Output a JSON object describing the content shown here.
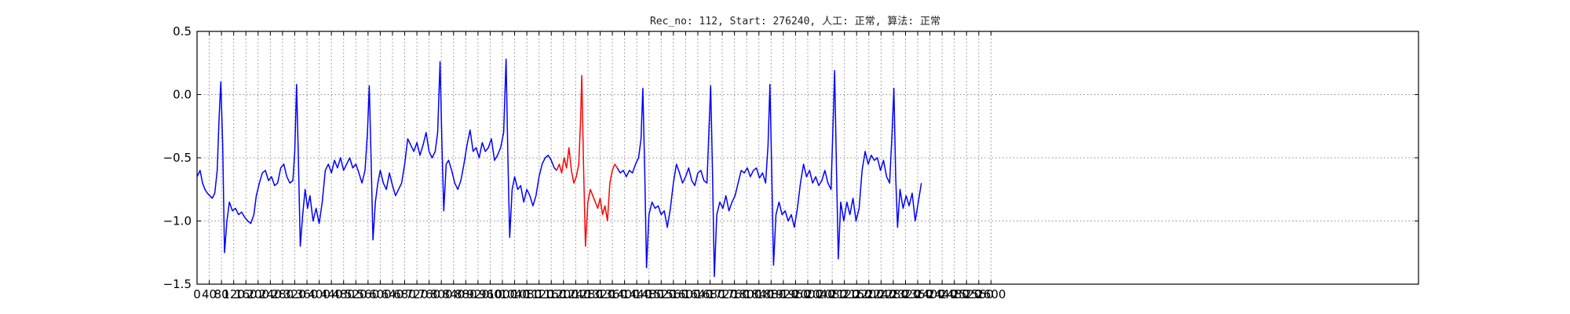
{
  "chart_data": {
    "type": "line",
    "title": "Rec_no: 112, Start: 276240, 人工: 正常, 算法: 正常",
    "xlabel": "",
    "ylabel": "",
    "xlim": [
      0,
      4000
    ],
    "ylim": [
      -1.5,
      0.5
    ],
    "y_ticks": [
      "0.5",
      "0.0",
      "−0.5",
      "−1.0",
      "−1.5"
    ],
    "y_tick_values": [
      0.5,
      0.0,
      -0.5,
      -1.0,
      -1.5
    ],
    "x_ticks": [
      "0",
      "40",
      "80",
      "120",
      "160",
      "200",
      "240",
      "280",
      "320",
      "360",
      "400",
      "440",
      "480",
      "520",
      "560",
      "600",
      "640",
      "680",
      "720",
      "760",
      "800",
      "840",
      "880",
      "920",
      "960",
      "1000",
      "1040",
      "1080",
      "1120",
      "1160",
      "1200",
      "1240",
      "1280",
      "1320",
      "1360",
      "1400",
      "1440",
      "1480",
      "1520",
      "1560",
      "1600",
      "1640",
      "1680",
      "1720",
      "1760",
      "1800",
      "1840",
      "1880",
      "1920",
      "1960",
      "2000",
      "2040",
      "2080",
      "2120",
      "2160",
      "2200",
      "2240",
      "2280",
      "2320",
      "2360",
      "2400",
      "2440",
      "2480",
      "2520",
      "2560",
      "2600"
    ],
    "x_tick_values": [
      0,
      40,
      80,
      120,
      160,
      200,
      240,
      280,
      320,
      360,
      400,
      440,
      480,
      520,
      560,
      600,
      640,
      680,
      720,
      760,
      800,
      840,
      880,
      920,
      960,
      1000,
      1040,
      1080,
      1120,
      1160,
      1200,
      1240,
      1280,
      1320,
      1360,
      1400,
      1440,
      1480,
      1520,
      1560,
      1600,
      1640,
      1680,
      1720,
      1760,
      1800,
      1840,
      1880,
      1920,
      1960,
      2000,
      2040,
      2080,
      2120,
      2160,
      2200,
      2240,
      2280,
      2320,
      2360,
      2400,
      2440,
      2480,
      2520,
      2560,
      2600
    ],
    "grid": true,
    "series": [
      {
        "color": "#0000ff",
        "points": [
          [
            0,
            -0.65
          ],
          [
            10,
            -0.6
          ],
          [
            18,
            -0.7
          ],
          [
            26,
            -0.75
          ],
          [
            34,
            -0.78
          ],
          [
            42,
            -0.8
          ],
          [
            50,
            -0.82
          ],
          [
            58,
            -0.78
          ],
          [
            66,
            -0.6
          ],
          [
            72,
            -0.2
          ],
          [
            78,
            0.1
          ],
          [
            84,
            -0.4
          ],
          [
            90,
            -1.25
          ],
          [
            98,
            -1.0
          ],
          [
            106,
            -0.85
          ],
          [
            116,
            -0.92
          ],
          [
            126,
            -0.9
          ],
          [
            136,
            -0.95
          ],
          [
            146,
            -0.93
          ],
          [
            156,
            -0.97
          ],
          [
            166,
            -1.0
          ],
          [
            176,
            -1.02
          ],
          [
            186,
            -0.95
          ],
          [
            194,
            -0.8
          ],
          [
            204,
            -0.7
          ],
          [
            214,
            -0.62
          ],
          [
            224,
            -0.6
          ],
          [
            234,
            -0.68
          ],
          [
            244,
            -0.65
          ],
          [
            254,
            -0.72
          ],
          [
            264,
            -0.7
          ],
          [
            274,
            -0.58
          ],
          [
            284,
            -0.55
          ],
          [
            294,
            -0.65
          ],
          [
            304,
            -0.7
          ],
          [
            314,
            -0.68
          ],
          [
            320,
            -0.45
          ],
          [
            326,
            0.08
          ],
          [
            332,
            -0.5
          ],
          [
            338,
            -1.2
          ],
          [
            346,
            -0.95
          ],
          [
            354,
            -0.75
          ],
          [
            362,
            -0.9
          ],
          [
            370,
            -0.8
          ],
          [
            380,
            -1.0
          ],
          [
            390,
            -0.9
          ],
          [
            400,
            -1.02
          ],
          [
            410,
            -0.85
          ],
          [
            420,
            -0.6
          ],
          [
            430,
            -0.55
          ],
          [
            440,
            -0.62
          ],
          [
            450,
            -0.52
          ],
          [
            460,
            -0.58
          ],
          [
            470,
            -0.5
          ],
          [
            480,
            -0.6
          ],
          [
            490,
            -0.55
          ],
          [
            500,
            -0.5
          ],
          [
            510,
            -0.58
          ],
          [
            520,
            -0.55
          ],
          [
            530,
            -0.62
          ],
          [
            540,
            -0.7
          ],
          [
            550,
            -0.6
          ],
          [
            558,
            -0.3
          ],
          [
            564,
            0.07
          ],
          [
            570,
            -0.5
          ],
          [
            576,
            -1.15
          ],
          [
            584,
            -0.85
          ],
          [
            592,
            -0.7
          ],
          [
            600,
            -0.6
          ],
          [
            610,
            -0.7
          ],
          [
            620,
            -0.75
          ],
          [
            630,
            -0.62
          ],
          [
            640,
            -0.72
          ],
          [
            650,
            -0.8
          ],
          [
            660,
            -0.75
          ],
          [
            670,
            -0.7
          ],
          [
            680,
            -0.55
          ],
          [
            690,
            -0.35
          ],
          [
            700,
            -0.4
          ],
          [
            710,
            -0.45
          ],
          [
            720,
            -0.38
          ],
          [
            730,
            -0.48
          ],
          [
            740,
            -0.4
          ],
          [
            750,
            -0.3
          ],
          [
            760,
            -0.45
          ],
          [
            770,
            -0.5
          ],
          [
            780,
            -0.45
          ],
          [
            788,
            -0.3
          ],
          [
            796,
            0.26
          ],
          [
            802,
            -0.4
          ],
          [
            808,
            -0.92
          ],
          [
            816,
            -0.55
          ],
          [
            824,
            -0.52
          ],
          [
            834,
            -0.6
          ],
          [
            844,
            -0.7
          ],
          [
            854,
            -0.75
          ],
          [
            864,
            -0.68
          ],
          [
            874,
            -0.55
          ],
          [
            884,
            -0.4
          ],
          [
            894,
            -0.28
          ],
          [
            904,
            -0.45
          ],
          [
            914,
            -0.42
          ],
          [
            924,
            -0.5
          ],
          [
            934,
            -0.38
          ],
          [
            944,
            -0.45
          ],
          [
            954,
            -0.42
          ],
          [
            964,
            -0.35
          ],
          [
            974,
            -0.52
          ],
          [
            984,
            -0.48
          ],
          [
            994,
            -0.42
          ],
          [
            1004,
            -0.3
          ],
          [
            1012,
            0.28
          ],
          [
            1018,
            -0.5
          ],
          [
            1024,
            -1.13
          ],
          [
            1032,
            -0.75
          ],
          [
            1040,
            -0.65
          ],
          [
            1050,
            -0.75
          ],
          [
            1060,
            -0.72
          ],
          [
            1070,
            -0.85
          ],
          [
            1080,
            -0.75
          ],
          [
            1090,
            -0.8
          ],
          [
            1100,
            -0.88
          ],
          [
            1110,
            -0.8
          ],
          [
            1120,
            -0.65
          ],
          [
            1130,
            -0.55
          ],
          [
            1140,
            -0.5
          ],
          [
            1150,
            -0.48
          ],
          [
            1160,
            -0.52
          ],
          [
            1170,
            -0.58
          ],
          [
            1178,
            -0.6
          ]
        ]
      },
      {
        "color": "#ff0000",
        "points": [
          [
            1178,
            -0.6
          ],
          [
            1186,
            -0.55
          ],
          [
            1194,
            -0.62
          ],
          [
            1202,
            -0.5
          ],
          [
            1210,
            -0.58
          ],
          [
            1218,
            -0.42
          ],
          [
            1226,
            -0.6
          ],
          [
            1234,
            -0.7
          ],
          [
            1242,
            -0.65
          ],
          [
            1250,
            -0.55
          ],
          [
            1256,
            -0.2
          ],
          [
            1260,
            0.15
          ],
          [
            1266,
            -0.6
          ],
          [
            1272,
            -1.2
          ],
          [
            1280,
            -0.85
          ],
          [
            1288,
            -0.75
          ],
          [
            1296,
            -0.8
          ],
          [
            1304,
            -0.85
          ],
          [
            1312,
            -0.9
          ],
          [
            1320,
            -0.82
          ],
          [
            1328,
            -0.95
          ],
          [
            1336,
            -0.88
          ],
          [
            1344,
            -1.0
          ],
          [
            1352,
            -0.7
          ],
          [
            1360,
            -0.6
          ],
          [
            1368,
            -0.55
          ],
          [
            1376,
            -0.58
          ]
        ]
      },
      {
        "color": "#0000ff",
        "points": [
          [
            1376,
            -0.58
          ],
          [
            1386,
            -0.62
          ],
          [
            1396,
            -0.6
          ],
          [
            1406,
            -0.65
          ],
          [
            1416,
            -0.6
          ],
          [
            1426,
            -0.62
          ],
          [
            1436,
            -0.55
          ],
          [
            1446,
            -0.5
          ],
          [
            1454,
            -0.35
          ],
          [
            1460,
            0.05
          ],
          [
            1466,
            -0.6
          ],
          [
            1472,
            -1.37
          ],
          [
            1480,
            -0.95
          ],
          [
            1490,
            -0.85
          ],
          [
            1500,
            -0.9
          ],
          [
            1510,
            -0.88
          ],
          [
            1520,
            -0.95
          ],
          [
            1530,
            -0.92
          ],
          [
            1540,
            -1.05
          ],
          [
            1550,
            -0.9
          ],
          [
            1560,
            -0.7
          ],
          [
            1570,
            -0.55
          ],
          [
            1580,
            -0.62
          ],
          [
            1590,
            -0.7
          ],
          [
            1600,
            -0.65
          ],
          [
            1610,
            -0.58
          ],
          [
            1620,
            -0.68
          ],
          [
            1630,
            -0.72
          ],
          [
            1640,
            -0.62
          ],
          [
            1650,
            -0.6
          ],
          [
            1660,
            -0.68
          ],
          [
            1670,
            -0.7
          ],
          [
            1676,
            -0.3
          ],
          [
            1682,
            0.07
          ],
          [
            1688,
            -0.6
          ],
          [
            1694,
            -1.44
          ],
          [
            1702,
            -0.95
          ],
          [
            1712,
            -0.85
          ],
          [
            1722,
            -0.9
          ],
          [
            1732,
            -0.8
          ],
          [
            1742,
            -0.92
          ],
          [
            1752,
            -0.85
          ],
          [
            1762,
            -0.8
          ],
          [
            1772,
            -0.7
          ],
          [
            1782,
            -0.6
          ],
          [
            1792,
            -0.62
          ],
          [
            1802,
            -0.58
          ],
          [
            1812,
            -0.65
          ],
          [
            1822,
            -0.6
          ],
          [
            1832,
            -0.58
          ],
          [
            1842,
            -0.66
          ],
          [
            1852,
            -0.62
          ],
          [
            1862,
            -0.7
          ],
          [
            1870,
            -0.4
          ],
          [
            1876,
            0.08
          ],
          [
            1882,
            -0.6
          ],
          [
            1888,
            -1.35
          ],
          [
            1896,
            -0.95
          ],
          [
            1906,
            -0.85
          ],
          [
            1916,
            -0.95
          ],
          [
            1926,
            -0.92
          ],
          [
            1936,
            -1.0
          ],
          [
            1946,
            -0.95
          ],
          [
            1956,
            -1.05
          ],
          [
            1966,
            -0.9
          ],
          [
            1976,
            -0.7
          ],
          [
            1986,
            -0.55
          ],
          [
            1996,
            -0.65
          ],
          [
            2006,
            -0.6
          ],
          [
            2016,
            -0.7
          ],
          [
            2026,
            -0.65
          ],
          [
            2036,
            -0.72
          ],
          [
            2046,
            -0.68
          ],
          [
            2056,
            -0.6
          ],
          [
            2066,
            -0.7
          ],
          [
            2076,
            -0.75
          ],
          [
            2082,
            -0.3
          ],
          [
            2088,
            0.19
          ],
          [
            2094,
            -0.6
          ],
          [
            2100,
            -1.3
          ],
          [
            2108,
            -0.85
          ],
          [
            2118,
            -1.0
          ],
          [
            2128,
            -0.85
          ],
          [
            2138,
            -0.95
          ],
          [
            2148,
            -0.82
          ],
          [
            2158,
            -1.0
          ],
          [
            2168,
            -0.9
          ],
          [
            2178,
            -0.6
          ],
          [
            2188,
            -0.45
          ],
          [
            2198,
            -0.55
          ],
          [
            2208,
            -0.48
          ],
          [
            2218,
            -0.52
          ],
          [
            2228,
            -0.5
          ],
          [
            2238,
            -0.6
          ],
          [
            2248,
            -0.52
          ],
          [
            2258,
            -0.65
          ],
          [
            2268,
            -0.7
          ],
          [
            2276,
            -0.3
          ],
          [
            2282,
            0.05
          ],
          [
            2288,
            -0.65
          ],
          [
            2294,
            -1.05
          ],
          [
            2302,
            -0.75
          ],
          [
            2312,
            -0.9
          ],
          [
            2322,
            -0.8
          ],
          [
            2332,
            -0.88
          ],
          [
            2342,
            -0.78
          ],
          [
            2352,
            -1.0
          ],
          [
            2362,
            -0.85
          ],
          [
            2372,
            -0.7
          ]
        ]
      }
    ]
  }
}
